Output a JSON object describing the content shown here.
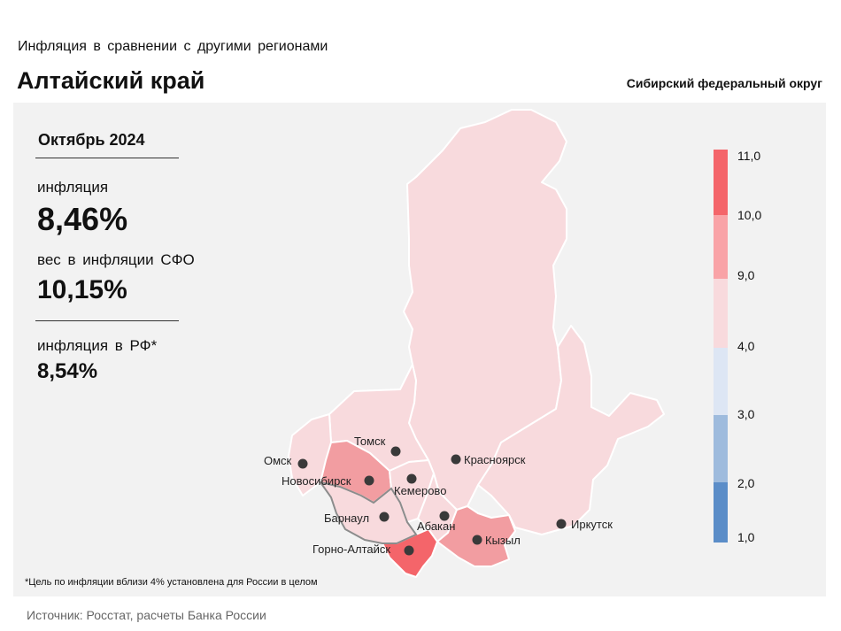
{
  "header": {
    "subtitle": "Инфляция в сравнении с другими регионами",
    "region": "Алтайский край",
    "district": "Сибирский федеральный округ"
  },
  "stats": {
    "period": "Октябрь 2024",
    "inflation_label": "инфляция",
    "inflation_value": "8,46%",
    "weight_label": "вес в инфляции СФО",
    "weight_value": "10,15%",
    "rf_label": "инфляция в РФ*",
    "rf_value": "8,54%"
  },
  "legend": {
    "ticks": [
      "11,0",
      "10,0",
      "9,0",
      "4,0",
      "3,0",
      "2,0",
      "1,0"
    ],
    "colors": [
      "#f4656a",
      "#f9a3a7",
      "#f8dadd",
      "#dde6f4",
      "#9ebbdd",
      "#5b8dc8"
    ]
  },
  "regions": [
    {
      "name": "Krasnoyarsk",
      "color": "#f8dadd"
    },
    {
      "name": "Irkutsk",
      "color": "#f8dadd"
    },
    {
      "name": "Tomsk",
      "color": "#f8dadd"
    },
    {
      "name": "Omsk",
      "color": "#f8dadd"
    },
    {
      "name": "Novosibirsk",
      "color": "#f29da1"
    },
    {
      "name": "Kemerovo",
      "color": "#f8dadd"
    },
    {
      "name": "Altai Krai",
      "color": "#f8dadd"
    },
    {
      "name": "Khakassia",
      "color": "#f8dadd"
    },
    {
      "name": "Tyva",
      "color": "#f29da1"
    },
    {
      "name": "Altai Republic",
      "color": "#f4656a"
    }
  ],
  "cities": [
    {
      "name": "Томск"
    },
    {
      "name": "Красноярск"
    },
    {
      "name": "Омск"
    },
    {
      "name": "Новосибирск"
    },
    {
      "name": "Кемерово"
    },
    {
      "name": "Барнаул"
    },
    {
      "name": "Абакан"
    },
    {
      "name": "Горно-Алтайск"
    },
    {
      "name": "Кызыл"
    },
    {
      "name": "Иркутск"
    }
  ],
  "footnote": "*Цель по инфляции вблизи 4% установлена для России в целом",
  "source": "Источник: Росстат, расчеты Банка России"
}
